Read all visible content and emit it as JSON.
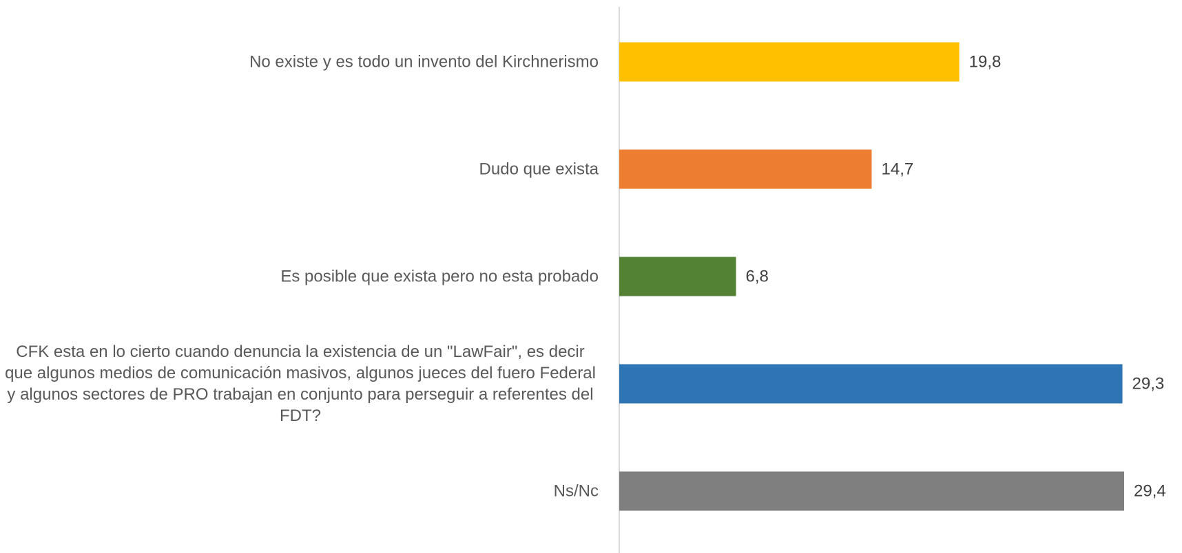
{
  "chart_data": {
    "type": "barh",
    "categories": [
      "No existe y es todo un invento del Kirchnerismo",
      "Dudo que exista",
      "Es posible que exista pero no esta probado",
      "CFK esta en lo cierto cuando denuncia la existencia de un \"LawFair\", es decir que algunos medios de comunicación masivos, algunos jueces del fuero Federal y algunos sectores de PRO trabajan en conjunto para perseguir a referentes del  FDT?",
      "Ns/Nc"
    ],
    "values": [
      19.8,
      14.7,
      6.8,
      29.3,
      29.4
    ],
    "value_labels": [
      "19,8",
      "14,7",
      "6,8",
      "29,3",
      "29,4"
    ],
    "colors": [
      "#ffc000",
      "#ed7d31",
      "#548235",
      "#2e75b6",
      "#7f7f7f"
    ]
  }
}
